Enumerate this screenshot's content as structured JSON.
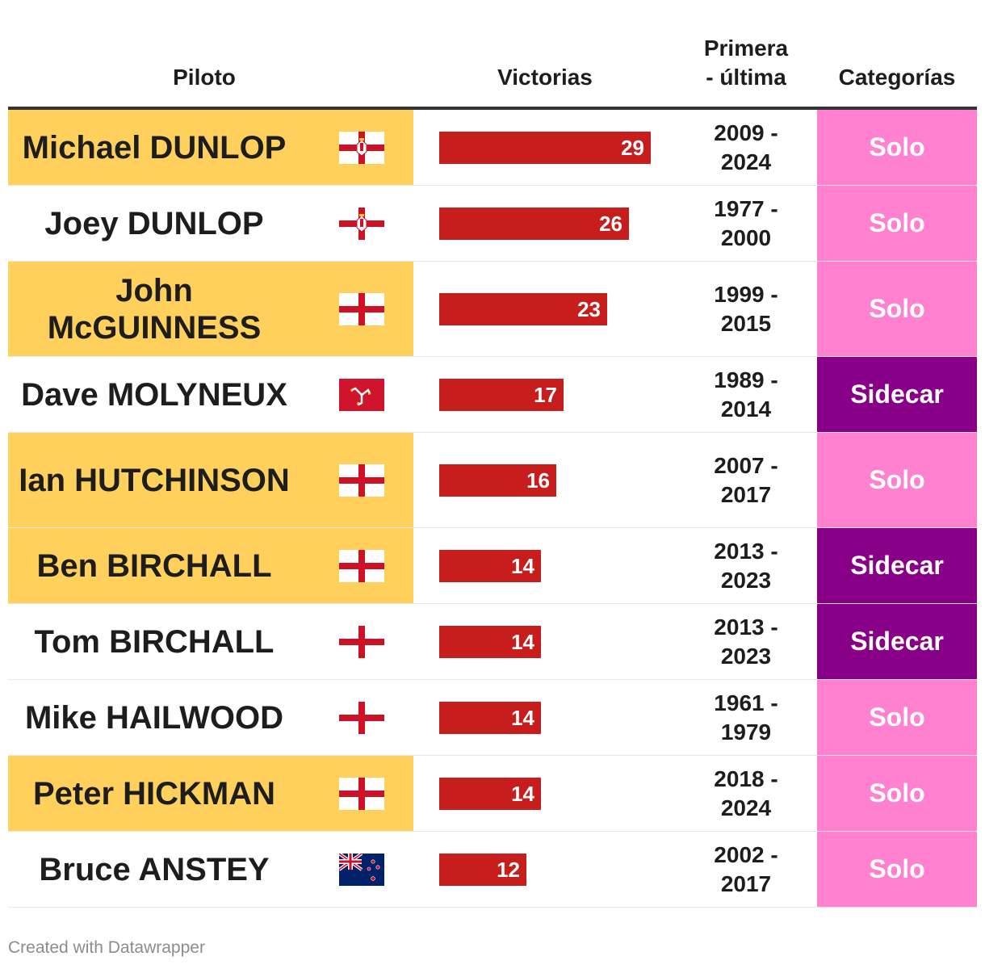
{
  "chart_data": {
    "type": "table",
    "columns": [
      "Piloto",
      "Victorias",
      "Primera - última",
      "Categorías"
    ],
    "header": {
      "piloto": "Piloto",
      "victorias": "Victorias",
      "years_line1": "Primera",
      "years_line2": "- última",
      "categorias": "Categorías"
    },
    "bar_max": 29,
    "rows": [
      {
        "name": "Michael DUNLOP",
        "flag": "northern-ireland-flag",
        "victories": 29,
        "first": "2009 -",
        "last": "2024",
        "category": "Solo",
        "highlight": true
      },
      {
        "name": "Joey DUNLOP",
        "flag": "northern-ireland-flag",
        "victories": 26,
        "first": "1977 -",
        "last": "2000",
        "category": "Solo",
        "highlight": false
      },
      {
        "name": "John McGUINNESS",
        "flag": "england-flag",
        "victories": 23,
        "first": "1999 -",
        "last": "2015",
        "category": "Solo",
        "highlight": true
      },
      {
        "name": "Dave MOLYNEUX",
        "flag": "isle-of-man-flag",
        "victories": 17,
        "first": "1989 -",
        "last": "2014",
        "category": "Sidecar",
        "highlight": false
      },
      {
        "name": "Ian HUTCHINSON",
        "flag": "england-flag",
        "victories": 16,
        "first": "2007 -",
        "last": "2017",
        "category": "Solo",
        "highlight": true
      },
      {
        "name": "Ben BIRCHALL",
        "flag": "england-flag",
        "victories": 14,
        "first": "2013 -",
        "last": "2023",
        "category": "Sidecar",
        "highlight": true
      },
      {
        "name": "Tom BIRCHALL",
        "flag": "england-flag",
        "victories": 14,
        "first": "2013 -",
        "last": "2023",
        "category": "Sidecar",
        "highlight": false
      },
      {
        "name": "Mike HAILWOOD",
        "flag": "england-flag",
        "victories": 14,
        "first": "1961 -",
        "last": "1979",
        "category": "Solo",
        "highlight": false
      },
      {
        "name": "Peter HICKMAN",
        "flag": "england-flag",
        "victories": 14,
        "first": "2018 -",
        "last": "2024",
        "category": "Solo",
        "highlight": true
      },
      {
        "name": "Bruce ANSTEY",
        "flag": "new-zealand-flag",
        "victories": 12,
        "first": "2002 -",
        "last": "2017",
        "category": "Solo",
        "highlight": false
      }
    ]
  },
  "colors": {
    "highlight": "#ffd15c",
    "bar": "#c71e1d",
    "solo": "#ff81cf",
    "sidecar": "#880088"
  },
  "footer": "Created with Datawrapper"
}
